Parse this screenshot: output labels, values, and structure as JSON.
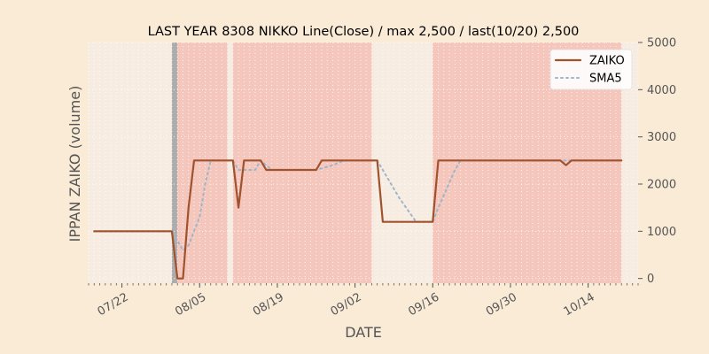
{
  "chart_data": {
    "type": "line",
    "title": "LAST YEAR 8308 NIKKO Line(Close) / max 2,500 / last(10/20) 2,500",
    "xlabel": "DATE",
    "ylabel": "IPPAN ZAIKO (volume)",
    "ylim": [
      -100,
      5000
    ],
    "yticks": [
      0,
      1000,
      2000,
      3000,
      4000,
      5000
    ],
    "ytick_labels": [
      "0",
      "1000",
      "2000",
      "3000",
      "4000",
      "5000"
    ],
    "y_axis_side": "right",
    "date_range": [
      "07/16",
      "10/23"
    ],
    "xticks": [
      "07/22",
      "08/05",
      "08/19",
      "09/02",
      "09/16",
      "09/30",
      "10/14"
    ],
    "legend_position": "top-right",
    "grid": true,
    "colors": {
      "zaiko": "#a0522d",
      "sma5": "#9fb5c9",
      "band_red": "#f4c6bc",
      "band_gray": "#adadad",
      "plot_bg": "#f6ece1",
      "page_bg": "#faebd7"
    },
    "bands": [
      {
        "from": "07/31",
        "to": "08/01",
        "color": "gray"
      },
      {
        "from": "08/01",
        "to": "08/10",
        "color": "red"
      },
      {
        "from": "08/11",
        "to": "09/05",
        "color": "red"
      },
      {
        "from": "09/16",
        "to": "10/20",
        "color": "red"
      }
    ],
    "series": [
      {
        "name": "ZAIKO",
        "style": "solid",
        "points": [
          [
            "07/17",
            1000
          ],
          [
            "07/31",
            1000
          ],
          [
            "08/01",
            0
          ],
          [
            "08/02",
            0
          ],
          [
            "08/03",
            1500
          ],
          [
            "08/04",
            2500
          ],
          [
            "08/11",
            2500
          ],
          [
            "08/12",
            1500
          ],
          [
            "08/13",
            2500
          ],
          [
            "08/16",
            2500
          ],
          [
            "08/17",
            2300
          ],
          [
            "08/26",
            2300
          ],
          [
            "08/27",
            2500
          ],
          [
            "09/06",
            2500
          ],
          [
            "09/07",
            1200
          ],
          [
            "09/16",
            1200
          ],
          [
            "09/17",
            2500
          ],
          [
            "10/09",
            2500
          ],
          [
            "10/10",
            2400
          ],
          [
            "10/11",
            2500
          ],
          [
            "10/20",
            2500
          ]
        ]
      },
      {
        "name": "SMA5",
        "style": "dotted",
        "points": [
          [
            "07/17",
            1000
          ],
          [
            "07/31",
            1000
          ],
          [
            "08/02",
            600
          ],
          [
            "08/03",
            700
          ],
          [
            "08/04",
            1000
          ],
          [
            "08/05",
            1300
          ],
          [
            "08/06",
            2000
          ],
          [
            "08/07",
            2500
          ],
          [
            "08/11",
            2500
          ],
          [
            "08/12",
            2300
          ],
          [
            "08/15",
            2300
          ],
          [
            "08/16",
            2500
          ],
          [
            "08/17",
            2400
          ],
          [
            "08/18",
            2300
          ],
          [
            "08/26",
            2300
          ],
          [
            "08/29",
            2400
          ],
          [
            "08/31",
            2500
          ],
          [
            "09/06",
            2500
          ],
          [
            "09/07",
            2300
          ],
          [
            "09/10",
            1700
          ],
          [
            "09/13",
            1200
          ],
          [
            "09/16",
            1200
          ],
          [
            "09/17",
            1500
          ],
          [
            "09/20",
            2300
          ],
          [
            "09/21",
            2500
          ],
          [
            "10/20",
            2500
          ]
        ]
      }
    ]
  }
}
